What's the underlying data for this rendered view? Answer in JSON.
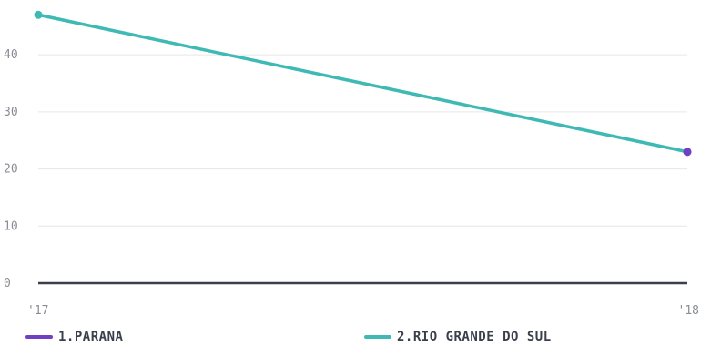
{
  "chart_data": {
    "type": "line",
    "x": [
      "'17",
      "'18"
    ],
    "ylim": [
      0,
      48
    ],
    "yticks": [
      0,
      10,
      20,
      30,
      40
    ],
    "grid": true,
    "legend_position": "bottom",
    "series": [
      {
        "name": "1.PARANA",
        "color": "#6f3fc4",
        "values": [
          null,
          23
        ]
      },
      {
        "name": "2.RIO GRANDE DO SUL",
        "color": "#3fb9b4",
        "values": [
          47,
          23
        ]
      }
    ]
  },
  "colors": {
    "grid": "#e6e6e6",
    "baseline": "#3a3f4a",
    "tick_text": "#8a8d94"
  }
}
